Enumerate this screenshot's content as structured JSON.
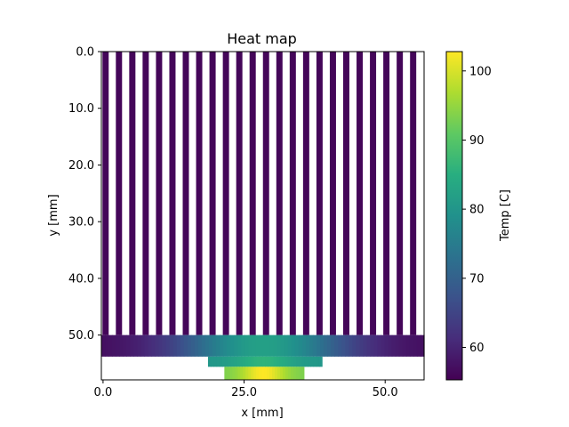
{
  "chart_data": {
    "type": "heatmap",
    "title": "Heat map",
    "xlabel": "x [mm]",
    "ylabel": "y [mm]",
    "xlim": [
      -0.3,
      56.9
    ],
    "ylim": [
      57.9,
      0.0
    ],
    "x_ticks": [
      0.0,
      25.0,
      50.0
    ],
    "x_tick_labels": [
      "0.0",
      "25.0",
      "50.0"
    ],
    "y_ticks": [
      0.0,
      10.0,
      20.0,
      30.0,
      40.0,
      50.0
    ],
    "y_tick_labels": [
      "0.0",
      "10.0",
      "20.0",
      "30.0",
      "40.0",
      "50.0"
    ],
    "colorbar": {
      "label": "Temp [C]",
      "colormap": "viridis",
      "range": [
        55.3,
        102.8
      ],
      "ticks": [
        60,
        70,
        80,
        90,
        100
      ],
      "tick_labels": [
        "60",
        "70",
        "80",
        "90",
        "100"
      ]
    },
    "grid": false,
    "fin_count": 24,
    "fin_pitch_mm": 2.37,
    "fin_width_mm": 1.1,
    "regions": [
      {
        "name": "fins",
        "y_range": [
          0.0,
          50.0
        ],
        "x_range": [
          -0.3,
          56.9
        ],
        "temperature": 56.0
      },
      {
        "name": "base plate",
        "y_range": [
          50.0,
          53.8
        ],
        "x_range": [
          -0.3,
          56.9
        ],
        "hotspot_x": 28.4,
        "temperature_min": 56.5,
        "temperature_max": 82.0
      },
      {
        "name": "spreader",
        "y_range": [
          53.8,
          55.6
        ],
        "x_range": [
          18.6,
          38.8
        ],
        "temperature_min": 80.0,
        "temperature_max": 86.0
      },
      {
        "name": "heat source",
        "y_range": [
          55.6,
          57.9
        ],
        "x_range": [
          21.5,
          35.6
        ],
        "temperature_min": 93.0,
        "temperature_max": 102.8
      }
    ]
  }
}
